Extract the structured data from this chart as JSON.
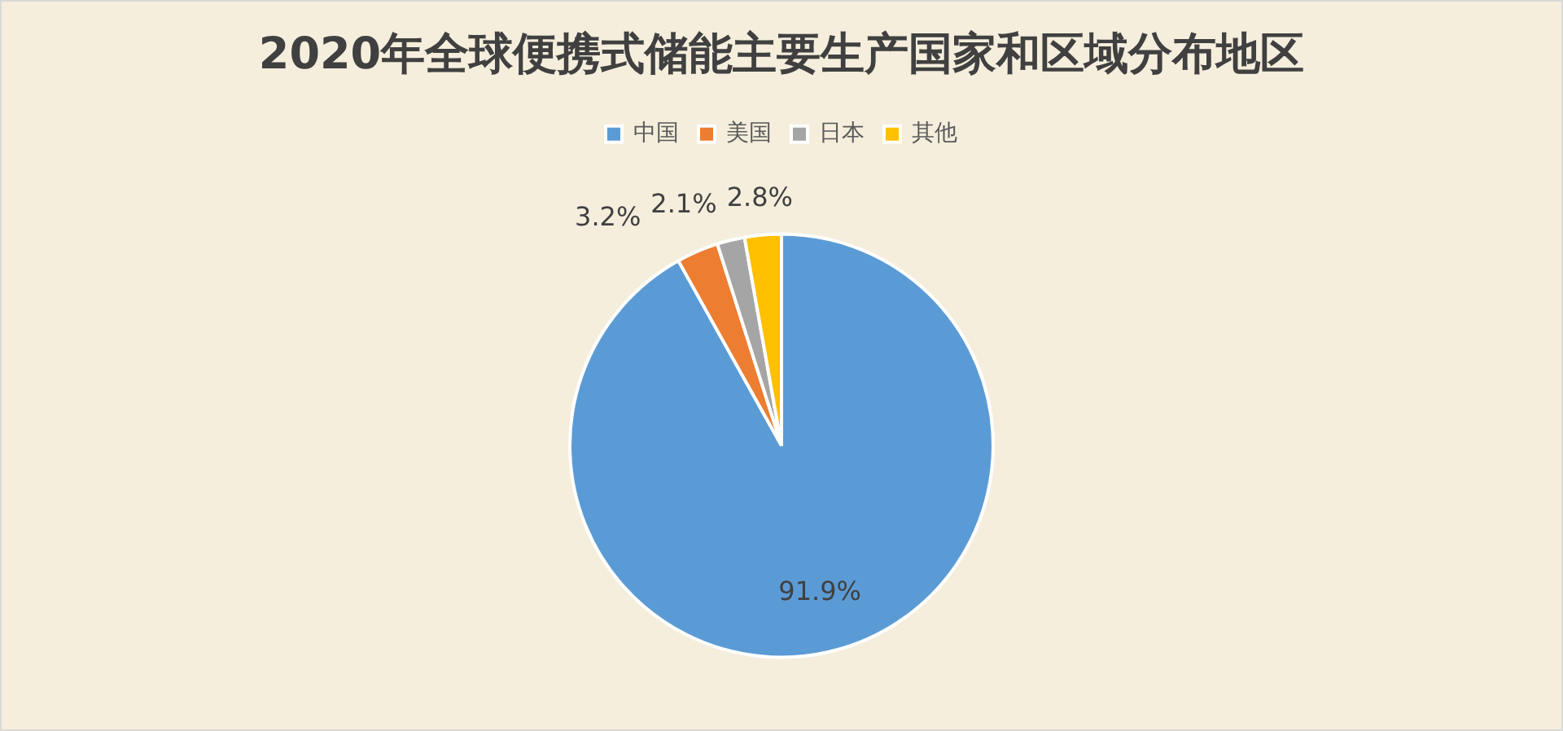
{
  "chart_data": {
    "type": "pie",
    "title": "2020年全球便携式储能主要生产国家和区域分布地区",
    "categories": [
      "中国",
      "美国",
      "日本",
      "其他"
    ],
    "values": [
      91.9,
      3.2,
      2.1,
      2.8
    ],
    "colors": [
      "#5b9bd5",
      "#ed7d31",
      "#a5a5a5",
      "#ffc000"
    ],
    "value_labels": [
      "91.9%",
      "3.2%",
      "2.1%",
      "2.8%"
    ],
    "legend": "top"
  }
}
